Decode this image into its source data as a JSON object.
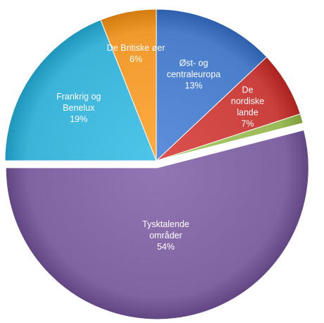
{
  "chart_data": {
    "type": "pie",
    "title": "",
    "slices": [
      {
        "label": "Øst- og centraleuropa",
        "label_lines": [
          "Øst- og",
          "centraleuropa"
        ],
        "value_label": "13%",
        "value": 13,
        "color": "#4a7ecb"
      },
      {
        "label": "De nordiske lande",
        "label_lines": [
          "De",
          "nordiske",
          "lande"
        ],
        "value_label": "7%",
        "value": 7,
        "color": "#c9403c"
      },
      {
        "label": "",
        "label_lines": [],
        "value_label": "",
        "value": 1,
        "color": "#9bbb59"
      },
      {
        "label": "Tysktalende områder",
        "label_lines": [
          "Tysktalende",
          "områder"
        ],
        "value_label": "54%",
        "value": 54,
        "color": "#8064a2"
      },
      {
        "label": "Frankrig og Benelux",
        "label_lines": [
          "Frankrig og",
          "Benelux"
        ],
        "value_label": "19%",
        "value": 19,
        "color": "#3cb3d8"
      },
      {
        "label": "De Britiske øer",
        "label_lines": [
          "De Britiske øer"
        ],
        "value_label": "6%",
        "value": 6,
        "color": "#f09a2e"
      }
    ]
  }
}
